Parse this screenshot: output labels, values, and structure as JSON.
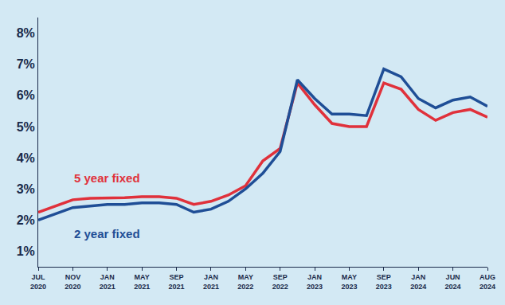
{
  "chart_data": {
    "type": "line",
    "categories": [
      "JUL 2020",
      null,
      "NOV 2020",
      null,
      "JAN 2021",
      null,
      "MAY 2021",
      null,
      "SEP 2021",
      null,
      "JAN 2021",
      null,
      "MAY 2022",
      null,
      "SEP 2022",
      null,
      "JAN 2023",
      null,
      "MAY 2023",
      null,
      "SEP 2023",
      null,
      "JAN 2024",
      null,
      "JUN 2024",
      null,
      "AUG 2024"
    ],
    "series": [
      {
        "name": "5 year fixed",
        "color": "#e0313b",
        "values": [
          2.25,
          2.45,
          2.65,
          2.7,
          2.7,
          2.72,
          2.75,
          2.75,
          2.7,
          2.5,
          2.6,
          2.8,
          3.1,
          3.9,
          4.3,
          6.4,
          5.7,
          5.1,
          5.0,
          5.0,
          6.4,
          6.2,
          5.55,
          5.2,
          5.45,
          5.55,
          5.3
        ]
      },
      {
        "name": "2 year fixed",
        "color": "#1f4e96",
        "values": [
          2.0,
          2.2,
          2.4,
          2.45,
          2.5,
          2.5,
          2.55,
          2.55,
          2.5,
          2.25,
          2.35,
          2.6,
          3.0,
          3.5,
          4.2,
          6.5,
          5.9,
          5.4,
          5.4,
          5.35,
          6.85,
          6.6,
          5.9,
          5.6,
          5.85,
          5.95,
          5.65
        ]
      }
    ],
    "ylim": [
      0.5,
      8.5
    ],
    "yticks": [
      {
        "value": 1,
        "label": "1%"
      },
      {
        "value": 2,
        "label": "2%"
      },
      {
        "value": 3,
        "label": "3%"
      },
      {
        "value": 4,
        "label": "4%"
      },
      {
        "value": 5,
        "label": "5%"
      },
      {
        "value": 6,
        "label": "6%"
      },
      {
        "value": 7,
        "label": "7%"
      },
      {
        "value": 8,
        "label": "8%"
      }
    ],
    "grid": false
  }
}
